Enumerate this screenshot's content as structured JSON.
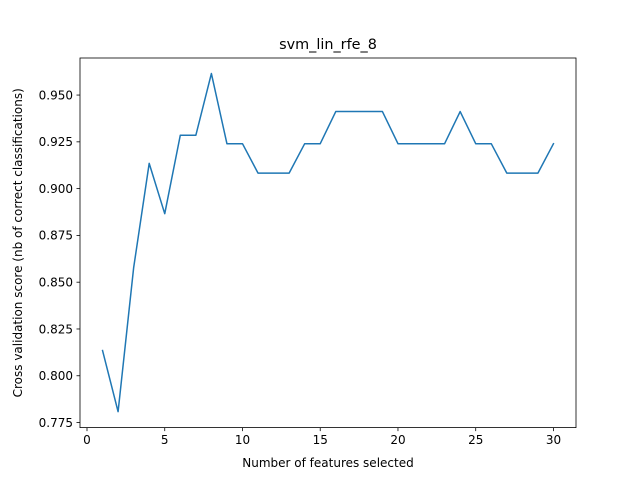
{
  "chart_data": {
    "type": "line",
    "title": "svm_lin_rfe_8",
    "xlabel": "Number of features selected",
    "ylabel": "Cross validation score (nb of correct classifications)",
    "xlim": [
      -0.45,
      31.45
    ],
    "ylim": [
      0.7723,
      0.9698
    ],
    "x_ticks": [
      0,
      5,
      10,
      15,
      20,
      25,
      30
    ],
    "x_tick_labels": [
      "0",
      "5",
      "10",
      "15",
      "20",
      "25",
      "30"
    ],
    "y_ticks": [
      0.775,
      0.8,
      0.825,
      0.85,
      0.875,
      0.9,
      0.925,
      0.95
    ],
    "y_tick_labels": [
      "0.775",
      "0.800",
      "0.825",
      "0.850",
      "0.875",
      "0.900",
      "0.925",
      "0.950"
    ],
    "grid": false,
    "legend": "none",
    "line_color": "#1f77b4",
    "series": [
      {
        "x": [
          1,
          2,
          3,
          4,
          5,
          6,
          7,
          8,
          9,
          10,
          11,
          12,
          13,
          14,
          15,
          16,
          17,
          18,
          19,
          20,
          21,
          22,
          23,
          24,
          25,
          26,
          27,
          28,
          29,
          30
        ],
        "y": [
          0.8135,
          0.7808,
          0.8577,
          0.9135,
          0.8866,
          0.9285,
          0.9285,
          0.9615,
          0.924,
          0.924,
          0.9083,
          0.9083,
          0.9083,
          0.924,
          0.924,
          0.9412,
          0.9412,
          0.9412,
          0.9412,
          0.924,
          0.924,
          0.924,
          0.924,
          0.9412,
          0.924,
          0.924,
          0.9083,
          0.9083,
          0.9083,
          0.924
        ]
      }
    ]
  }
}
